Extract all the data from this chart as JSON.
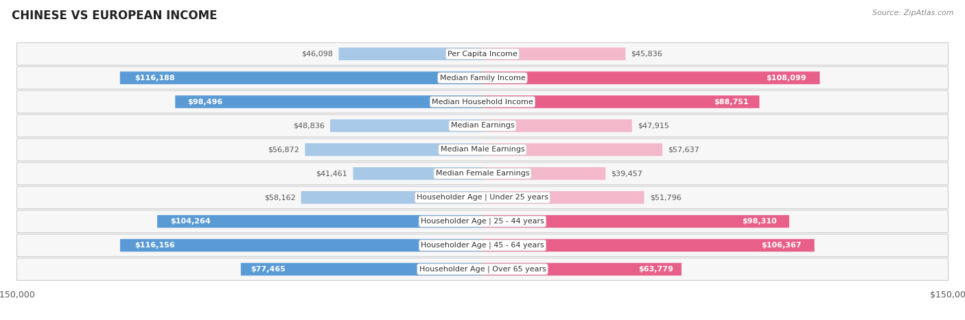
{
  "title": "CHINESE VS EUROPEAN INCOME",
  "source": "Source: ZipAtlas.com",
  "categories": [
    "Per Capita Income",
    "Median Family Income",
    "Median Household Income",
    "Median Earnings",
    "Median Male Earnings",
    "Median Female Earnings",
    "Householder Age | Under 25 years",
    "Householder Age | 25 - 44 years",
    "Householder Age | 45 - 64 years",
    "Householder Age | Over 65 years"
  ],
  "chinese_values": [
    46098,
    116188,
    98496,
    48836,
    56872,
    41461,
    58162,
    104264,
    116156,
    77465
  ],
  "european_values": [
    45836,
    108099,
    88751,
    47915,
    57637,
    39457,
    51796,
    98310,
    106367,
    63779
  ],
  "chinese_labels": [
    "$46,098",
    "$116,188",
    "$98,496",
    "$48,836",
    "$56,872",
    "$41,461",
    "$58,162",
    "$104,264",
    "$116,156",
    "$77,465"
  ],
  "european_labels": [
    "$45,836",
    "$108,099",
    "$88,751",
    "$47,915",
    "$57,637",
    "$39,457",
    "$51,796",
    "$98,310",
    "$106,367",
    "$63,779"
  ],
  "max_val": 150000,
  "chinese_color_low": "#a8c8e8",
  "chinese_color_high": "#5b9bd5",
  "european_color_low": "#f4b8cb",
  "european_color_high": "#e8608a",
  "label_dark": "#555555",
  "bg_color": "#ffffff",
  "threshold": 60000
}
